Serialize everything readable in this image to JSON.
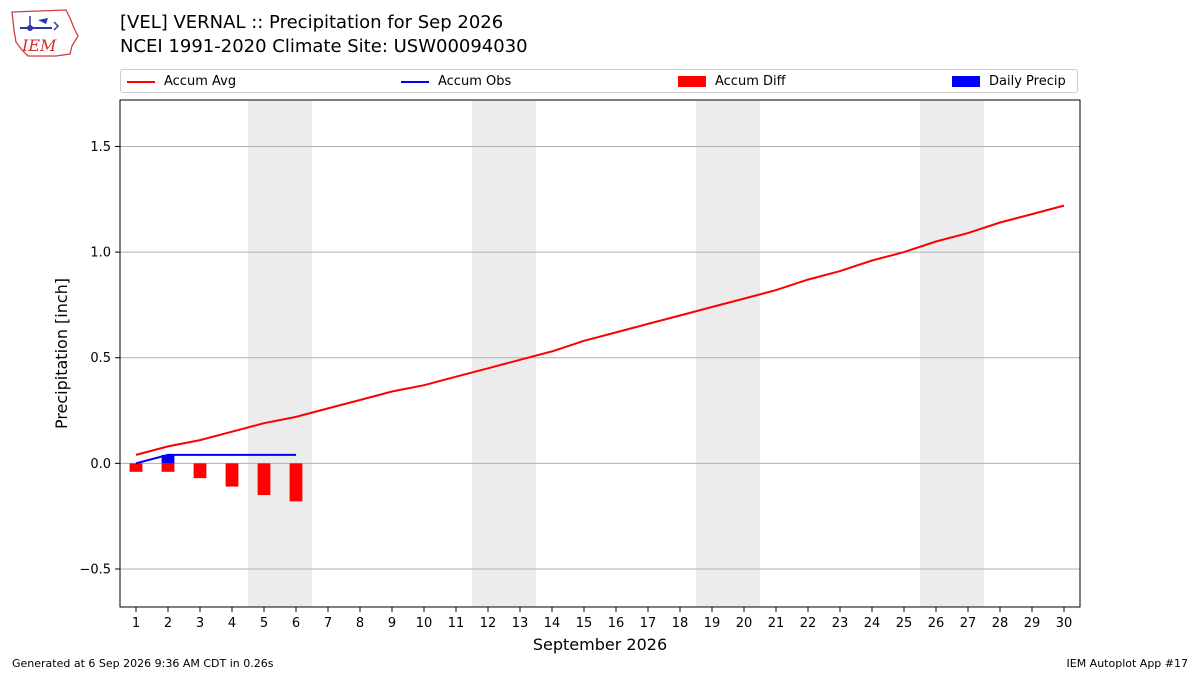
{
  "header": {
    "title_line1": "[VEL] VERNAL :: Precipitation for Sep 2026",
    "title_line2": "NCEI 1991-2020 Climate Site: USW00094030",
    "logo_text": "IEM"
  },
  "legend": {
    "items": [
      {
        "label": "Accum Avg",
        "color": "#ff0000",
        "kind": "line"
      },
      {
        "label": "Accum Obs",
        "color": "#0000ff",
        "kind": "line"
      },
      {
        "label": "Accum Diff",
        "color": "#ff0000",
        "kind": "rect"
      },
      {
        "label": "Daily Precip",
        "color": "#0000ff",
        "kind": "rect"
      }
    ]
  },
  "footer": {
    "left": "Generated at 6 Sep 2026 9:36 AM CDT in 0.26s",
    "right": "IEM Autoplot App #17"
  },
  "chart_data": {
    "type": "line",
    "title": "[VEL] VERNAL :: Precipitation for Sep 2026",
    "xlabel": "September 2026",
    "ylabel": "Precipitation [inch]",
    "x": [
      1,
      2,
      3,
      4,
      5,
      6,
      7,
      8,
      9,
      10,
      11,
      12,
      13,
      14,
      15,
      16,
      17,
      18,
      19,
      20,
      21,
      22,
      23,
      24,
      25,
      26,
      27,
      28,
      29,
      30
    ],
    "xlim": [
      0.5,
      30.5
    ],
    "ylim": [
      -0.68,
      1.72
    ],
    "yticks": [
      -0.5,
      0.0,
      0.5,
      1.0,
      1.5
    ],
    "ytick_labels": [
      "−0.5",
      "0.0",
      "0.5",
      "1.0",
      "1.5"
    ],
    "grid": "horizontal",
    "legend_position": "top",
    "weekend_shading": [
      [
        4.5,
        6.5
      ],
      [
        11.5,
        13.5
      ],
      [
        18.5,
        20.5
      ],
      [
        25.5,
        27.5
      ]
    ],
    "series": [
      {
        "name": "Accum Avg",
        "kind": "line",
        "color": "#ff0000",
        "x": [
          1,
          2,
          3,
          4,
          5,
          6,
          7,
          8,
          9,
          10,
          11,
          12,
          13,
          14,
          15,
          16,
          17,
          18,
          19,
          20,
          21,
          22,
          23,
          24,
          25,
          26,
          27,
          28,
          29,
          30
        ],
        "values": [
          0.04,
          0.08,
          0.11,
          0.15,
          0.19,
          0.22,
          0.26,
          0.3,
          0.34,
          0.37,
          0.41,
          0.45,
          0.49,
          0.53,
          0.58,
          0.62,
          0.66,
          0.7,
          0.74,
          0.78,
          0.82,
          0.87,
          0.91,
          0.96,
          1.0,
          1.05,
          1.09,
          1.14,
          1.18,
          1.22
        ]
      },
      {
        "name": "Accum Obs",
        "kind": "line",
        "color": "#0000ff",
        "x": [
          1,
          2,
          3,
          4,
          5,
          6
        ],
        "values": [
          0.0,
          0.04,
          0.04,
          0.04,
          0.04,
          0.04
        ]
      },
      {
        "name": "Accum Diff",
        "kind": "bar",
        "color": "#ff0000",
        "x": [
          1,
          2,
          3,
          4,
          5,
          6
        ],
        "values": [
          -0.04,
          -0.04,
          -0.07,
          -0.11,
          -0.15,
          -0.18
        ]
      },
      {
        "name": "Daily Precip",
        "kind": "bar",
        "color": "#0000ff",
        "x": [
          2
        ],
        "values": [
          0.04
        ]
      }
    ]
  }
}
